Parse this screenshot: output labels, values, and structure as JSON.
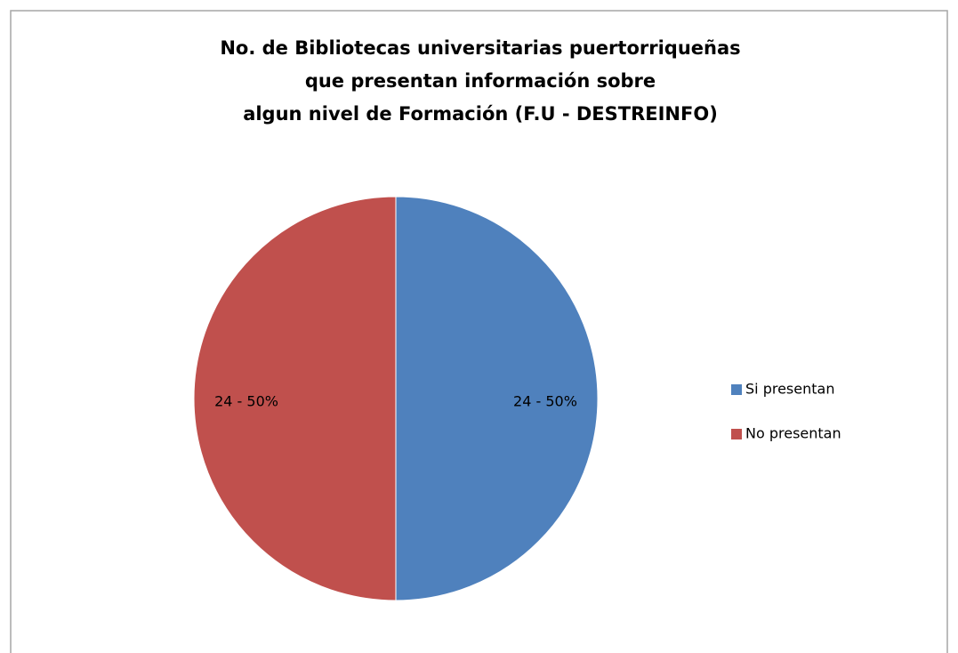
{
  "chart_data": {
    "type": "pie",
    "title": [
      "No. de Bibliotecas universitarias  puertorriqueñas",
      "que presentan información sobre",
      "algun nivel de Formación (F.U - DESTREINFO)"
    ],
    "categories": [
      "Si presentan",
      "No presentan"
    ],
    "values": [
      24,
      24
    ],
    "value_labels": [
      "24 - 50%",
      "24 - 50%"
    ],
    "colors": [
      "#4f81bd",
      "#c0504d"
    ],
    "legend": "right"
  }
}
